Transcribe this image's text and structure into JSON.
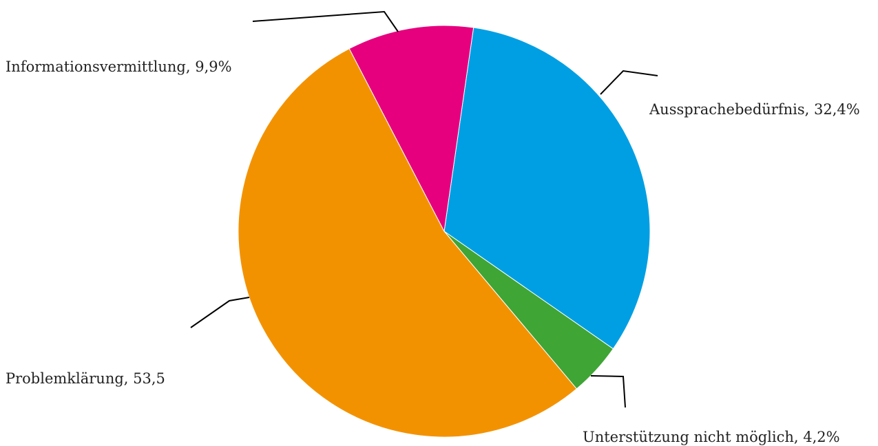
{
  "chart_data": {
    "type": "pie",
    "title": "",
    "slices": [
      {
        "label": "Aussprachebedürfnis, 32,4%",
        "value": 32.4,
        "color": "#009fe3"
      },
      {
        "label": "Unterstützung nicht möglich, 4,2%",
        "value": 4.2,
        "color": "#3fa535"
      },
      {
        "label": "Problemklärung, 53,5",
        "value": 53.5,
        "color": "#f39200"
      },
      {
        "label": "Informationsvermittlung, 9,9%",
        "value": 9.9,
        "color": "#e6007e"
      }
    ],
    "legend": "none"
  }
}
